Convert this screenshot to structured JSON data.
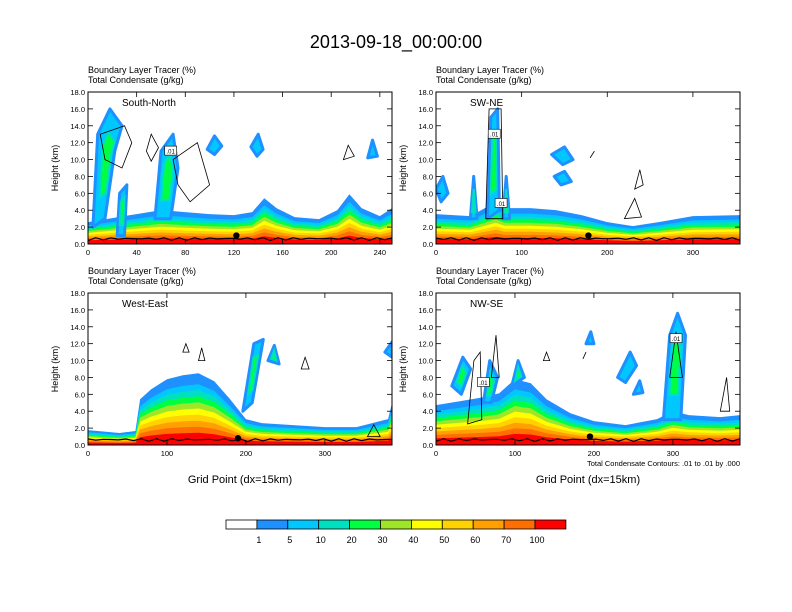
{
  "main_title": "2013-09-18_00:00:00",
  "chart_data": {
    "type": "heatmap",
    "legend": {
      "placement": "bottom-center",
      "colors": [
        "#ffffff",
        "#1e90ff",
        "#00c8ff",
        "#00e0c0",
        "#00ff40",
        "#a0e628",
        "#ffff00",
        "#ffd200",
        "#ffa000",
        "#ff6e00",
        "#ff0000"
      ],
      "labels": [
        "1",
        "5",
        "10",
        "20",
        "30",
        "40",
        "50",
        "60",
        "70",
        "100"
      ]
    },
    "panels": [
      {
        "id": "south-north",
        "label": "South-North",
        "title1": "Boundary Layer Tracer   (%)",
        "title2": "Total Condensate   (g/kg)",
        "xlim": [
          0,
          250
        ],
        "xticks": [
          0,
          40,
          80,
          120,
          160,
          200,
          240
        ],
        "xtick_labels": [
          "0",
          "40",
          "80",
          "120",
          "160",
          "200",
          "240"
        ],
        "ylim": [
          0,
          18
        ],
        "yticks": [
          0,
          2,
          4,
          6,
          8,
          10,
          12,
          14,
          16,
          18
        ],
        "ytick_labels": [
          "0.0",
          "2.0",
          "4.0",
          "6.0",
          "8.0",
          "10.0",
          "12.0",
          "14.0",
          "16.0",
          "18.0"
        ],
        "ylabel": "Height (km)",
        "xlabel": "",
        "profile": [
          [
            0,
            2.2
          ],
          [
            20,
            2.6
          ],
          [
            40,
            3.0
          ],
          [
            60,
            3.4
          ],
          [
            80,
            3.2
          ],
          [
            100,
            3.0
          ],
          [
            120,
            2.9
          ],
          [
            135,
            3.2
          ],
          [
            145,
            4.6
          ],
          [
            155,
            3.6
          ],
          [
            170,
            2.7
          ],
          [
            190,
            2.5
          ],
          [
            205,
            3.4
          ],
          [
            215,
            5.0
          ],
          [
            225,
            3.6
          ],
          [
            240,
            2.8
          ],
          [
            250,
            3.6
          ]
        ],
        "plumes": [
          [
            [
              4,
              2
            ],
            [
              8,
              13
            ],
            [
              18,
              16
            ],
            [
              28,
              14
            ],
            [
              22,
              11
            ],
            [
              14,
              3
            ]
          ],
          [
            [
              55,
              3
            ],
            [
              60,
              11
            ],
            [
              70,
              13
            ],
            [
              74,
              9
            ],
            [
              68,
              3
            ]
          ],
          [
            [
              24,
              1
            ],
            [
              26,
              6
            ],
            [
              32,
              7
            ],
            [
              30,
              1
            ]
          ]
        ],
        "upper": [
          [
            [
              98,
              11.2
            ],
            [
              104,
              12.8
            ],
            [
              110,
              11.6
            ],
            [
              104,
              10.6
            ]
          ],
          [
            [
              134,
              11.5
            ],
            [
              140,
              13
            ],
            [
              144,
              11.2
            ],
            [
              139,
              10.4
            ]
          ],
          [
            [
              230,
              10.2
            ],
            [
              234,
              12.3
            ],
            [
              238,
              10.4
            ]
          ]
        ],
        "clouds": [
          [
            [
              10,
              13
            ],
            [
              30,
              14
            ],
            [
              36,
              12
            ],
            [
              28,
              9
            ],
            [
              14,
              10
            ]
          ],
          [
            [
              48,
              11
            ],
            [
              52,
              13
            ],
            [
              58,
              11.4
            ],
            [
              52,
              9.8
            ]
          ],
          [
            [
              70,
              10
            ],
            [
              90,
              12
            ],
            [
              100,
              7
            ],
            [
              84,
              5
            ],
            [
              74,
              7
            ]
          ],
          [
            [
              210,
              10
            ],
            [
              214,
              11.7
            ],
            [
              219,
              10.4
            ]
          ]
        ],
        "markers": [
          [
            122,
            1.0
          ]
        ],
        "contour_labels": [
          {
            "x": 68,
            "y": 11.0,
            "text": ".01"
          }
        ]
      },
      {
        "id": "sw-ne",
        "label": "SW-NE",
        "title1": "Boundary Layer Tracer   (%)",
        "title2": "Total Condensate   (g/kg)",
        "xlim": [
          0,
          355
        ],
        "xticks": [
          0,
          100,
          200,
          300
        ],
        "xtick_labels": [
          "0",
          "100",
          "200",
          "300"
        ],
        "ylim": [
          0,
          18
        ],
        "yticks": [
          0,
          2,
          4,
          6,
          8,
          10,
          12,
          14,
          16,
          18
        ],
        "ytick_labels": [
          "0.0",
          "2.0",
          "4.0",
          "6.0",
          "8.0",
          "10.0",
          "12.0",
          "14.0",
          "16.0",
          "18.0"
        ],
        "ylabel": "Height (km)",
        "xlabel": "",
        "profile": [
          [
            0,
            3.0
          ],
          [
            40,
            2.8
          ],
          [
            70,
            4.2
          ],
          [
            80,
            3.6
          ],
          [
            110,
            3.6
          ],
          [
            140,
            3.4
          ],
          [
            170,
            2.9
          ],
          [
            200,
            2.2
          ],
          [
            230,
            1.8
          ],
          [
            260,
            2.2
          ],
          [
            300,
            2.8
          ],
          [
            355,
            2.9
          ]
        ],
        "plumes": [
          [
            [
              60,
              3
            ],
            [
              64,
              15
            ],
            [
              72,
              16
            ],
            [
              74,
              4
            ]
          ],
          [
            [
              40,
              3
            ],
            [
              44,
              8
            ],
            [
              48,
              3
            ]
          ],
          [
            [
              78,
              3
            ],
            [
              82,
              8
            ],
            [
              86,
              3
            ]
          ]
        ],
        "upper": [
          [
            [
              135,
              10.6
            ],
            [
              150,
              11.5
            ],
            [
              160,
              10
            ],
            [
              148,
              9.4
            ]
          ],
          [
            [
              138,
              8
            ],
            [
              150,
              8.6
            ],
            [
              158,
              7.4
            ],
            [
              146,
              7
            ]
          ],
          [
            [
              0,
              6.5
            ],
            [
              8,
              8
            ],
            [
              14,
              6
            ],
            [
              6,
              5
            ]
          ]
        ],
        "clouds": [
          [
            [
              58,
              3
            ],
            [
              62,
              16
            ],
            [
              76,
              16
            ],
            [
              78,
              3
            ]
          ],
          [
            [
              220,
              3
            ],
            [
              232,
              5.4
            ],
            [
              240,
              3.2
            ]
          ],
          [
            [
              232,
              6.5
            ],
            [
              238,
              8.8
            ],
            [
              242,
              7
            ]
          ],
          [
            [
              180,
              10.2
            ],
            [
              185,
              11
            ]
          ]
        ],
        "markers": [
          [
            178,
            1.0
          ]
        ],
        "contour_labels": [
          {
            "x": 68,
            "y": 13.0,
            "text": ".01"
          },
          {
            "x": 76,
            "y": 4.8,
            "text": ".01"
          }
        ]
      },
      {
        "id": "west-east",
        "label": "West-East",
        "title1": "Boundary Layer Tracer   (%)",
        "title2": "Total Condensate   (g/kg)",
        "xlim": [
          0,
          385
        ],
        "xticks": [
          0,
          100,
          200,
          300
        ],
        "xtick_labels": [
          "0",
          "100",
          "200",
          "300"
        ],
        "ylim": [
          0,
          18
        ],
        "yticks": [
          0,
          2,
          4,
          6,
          8,
          10,
          12,
          14,
          16,
          18
        ],
        "ytick_labels": [
          "0.0",
          "2.0",
          "4.0",
          "6.0",
          "8.0",
          "10.0",
          "12.0",
          "14.0",
          "16.0",
          "18.0"
        ],
        "ylabel": "Height (km)",
        "xlabel": "Grid Point (dx=15km)",
        "profile": [
          [
            0,
            1.5
          ],
          [
            40,
            1.2
          ],
          [
            60,
            1.4
          ],
          [
            66,
            4.6
          ],
          [
            80,
            5.6
          ],
          [
            100,
            6.6
          ],
          [
            120,
            7.0
          ],
          [
            140,
            7.2
          ],
          [
            160,
            6.4
          ],
          [
            180,
            4.6
          ],
          [
            200,
            2.6
          ],
          [
            220,
            2.2
          ],
          [
            260,
            2.0
          ],
          [
            300,
            1.8
          ],
          [
            340,
            1.8
          ],
          [
            380,
            2.6
          ],
          [
            385,
            4.2
          ]
        ],
        "plumes": [
          [
            [
              196,
              4
            ],
            [
              210,
              12
            ],
            [
              222,
              12.5
            ],
            [
              208,
              5
            ]
          ],
          [
            [
              228,
              10
            ],
            [
              236,
              11.8
            ],
            [
              242,
              9.6
            ]
          ]
        ],
        "upper": [
          [
            [
              376,
              11
            ],
            [
              385,
              12.2
            ],
            [
              385,
              10.4
            ]
          ]
        ],
        "clouds": [
          [
            [
              120,
              11
            ],
            [
              124,
              12
            ],
            [
              128,
              11
            ]
          ],
          [
            [
              140,
              10
            ],
            [
              144,
              11.5
            ],
            [
              148,
              10
            ]
          ],
          [
            [
              270,
              9
            ],
            [
              275,
              10.4
            ],
            [
              280,
              9
            ]
          ],
          [
            [
              354,
              1
            ],
            [
              362,
              2.4
            ],
            [
              370,
              1
            ]
          ]
        ],
        "markers": [
          [
            190,
            0.8
          ]
        ],
        "contour_labels": []
      },
      {
        "id": "nw-se",
        "label": "NW-SE",
        "title1": "Boundary Layer Tracer   (%)",
        "title2": "Total Condensate   (g/kg)",
        "xlim": [
          0,
          385
        ],
        "xticks": [
          0,
          100,
          200,
          300
        ],
        "xtick_labels": [
          "0",
          "100",
          "200",
          "300"
        ],
        "ylim": [
          0,
          18
        ],
        "yticks": [
          0,
          2,
          4,
          6,
          8,
          10,
          12,
          14,
          16,
          18
        ],
        "ytick_labels": [
          "0.0",
          "2.0",
          "4.0",
          "6.0",
          "8.0",
          "10.0",
          "12.0",
          "14.0",
          "16.0",
          "18.0"
        ],
        "ylabel": "Height (km)",
        "xlabel": "Grid Point (dx=15km)",
        "annotation": "Total Condensate Contours: .01 to .01 by .000",
        "profile": [
          [
            0,
            4.0
          ],
          [
            30,
            4.4
          ],
          [
            60,
            4.8
          ],
          [
            80,
            5.2
          ],
          [
            100,
            6.6
          ],
          [
            120,
            6.2
          ],
          [
            140,
            4.6
          ],
          [
            170,
            3.2
          ],
          [
            200,
            2.4
          ],
          [
            240,
            2.0
          ],
          [
            280,
            2.6
          ],
          [
            300,
            3.4
          ],
          [
            320,
            3.0
          ],
          [
            360,
            2.8
          ],
          [
            385,
            3.0
          ]
        ],
        "plumes": [
          [
            [
              20,
              7
            ],
            [
              34,
              10.4
            ],
            [
              44,
              9
            ],
            [
              32,
              6
            ]
          ],
          [
            [
              60,
              5
            ],
            [
              68,
              10
            ],
            [
              78,
              8
            ],
            [
              70,
              5
            ]
          ],
          [
            [
              288,
              3
            ],
            [
              296,
              13
            ],
            [
              306,
              15.6
            ],
            [
              316,
              13
            ],
            [
              310,
              3
            ]
          ],
          [
            [
              96,
              7
            ],
            [
              104,
              10
            ],
            [
              112,
              8
            ]
          ]
        ],
        "upper": [
          [
            [
              230,
              8
            ],
            [
              246,
              11
            ],
            [
              254,
              9.4
            ],
            [
              240,
              7.4
            ]
          ],
          [
            [
              250,
              6
            ],
            [
              258,
              7.6
            ],
            [
              262,
              6.2
            ]
          ],
          [
            [
              190,
              12
            ],
            [
              196,
              13.4
            ],
            [
              200,
              12
            ]
          ]
        ],
        "clouds": [
          [
            [
              40,
              2.5
            ],
            [
              48,
              10
            ],
            [
              56,
              11
            ],
            [
              58,
              3
            ]
          ],
          [
            [
              70,
              8
            ],
            [
              76,
              13
            ],
            [
              80,
              8
            ]
          ],
          [
            [
              136,
              10
            ],
            [
              140,
              11
            ],
            [
              144,
              10
            ]
          ],
          [
            [
              186,
              10.2
            ],
            [
              190,
              11
            ]
          ],
          [
            [
              296,
              8
            ],
            [
              304,
              13.4
            ],
            [
              312,
              8
            ]
          ],
          [
            [
              360,
              4
            ],
            [
              368,
              8
            ],
            [
              372,
              4
            ]
          ]
        ],
        "markers": [
          [
            195,
            1.0
          ]
        ],
        "contour_labels": [
          {
            "x": 60,
            "y": 7.4,
            "text": ".01"
          },
          {
            "x": 304,
            "y": 12.6,
            "text": ".01"
          }
        ]
      }
    ]
  }
}
